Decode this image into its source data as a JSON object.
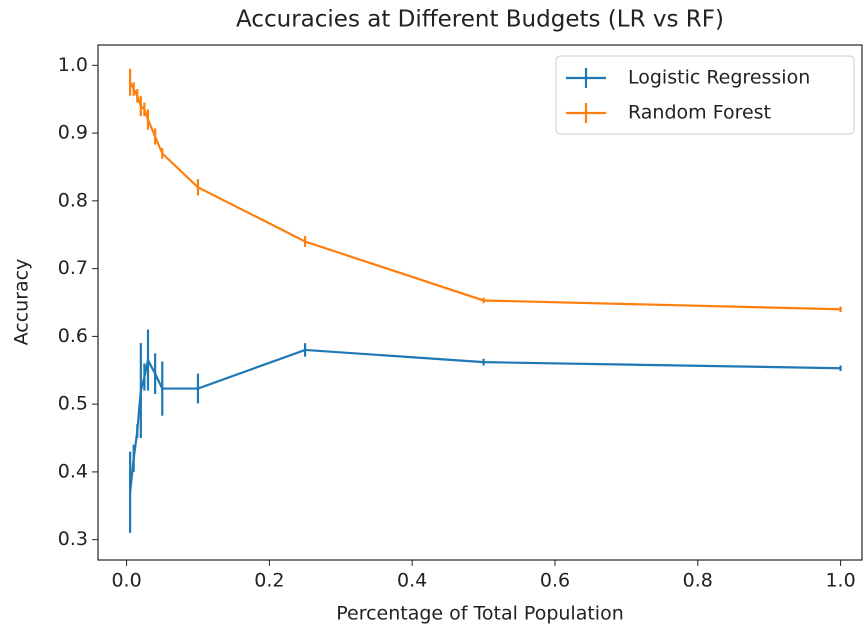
{
  "chart_data": {
    "type": "line",
    "title": "Accuracies at Different Budgets (LR vs RF)",
    "xlabel": "Percentage of Total Population",
    "ylabel": "Accuracy",
    "x": [
      0.005,
      0.01,
      0.015,
      0.02,
      0.025,
      0.03,
      0.04,
      0.05,
      0.1,
      0.25,
      0.5,
      1.0
    ],
    "series": [
      {
        "name": "Logistic Regression",
        "color": "#1f77b4",
        "values": [
          0.37,
          0.42,
          0.46,
          0.52,
          0.54,
          0.565,
          0.545,
          0.523,
          0.523,
          0.58,
          0.562,
          0.553
        ],
        "errors": [
          0.06,
          0.02,
          0.01,
          0.07,
          0.02,
          0.045,
          0.03,
          0.04,
          0.022,
          0.01,
          0.005,
          0.004
        ]
      },
      {
        "name": "Random Forest",
        "color": "#ff7f0e",
        "values": [
          0.975,
          0.965,
          0.955,
          0.94,
          0.935,
          0.92,
          0.895,
          0.87,
          0.82,
          0.74,
          0.653,
          0.64
        ],
        "errors": [
          0.02,
          0.01,
          0.01,
          0.015,
          0.01,
          0.015,
          0.012,
          0.008,
          0.012,
          0.008,
          0.004,
          0.004
        ]
      }
    ],
    "xlim": [
      -0.04,
      1.03
    ],
    "ylim": [
      0.27,
      1.03
    ],
    "xticks": [
      {
        "value": 0,
        "label": "0.0"
      },
      0.2,
      0.4,
      0.6,
      0.8,
      {
        "value": 1,
        "label": "1.0"
      }
    ],
    "yticks": [
      0.3,
      0.4,
      0.5,
      0.6,
      0.7,
      0.8,
      0.9,
      {
        "value": 1,
        "label": "1.0"
      }
    ],
    "legend": "upper right"
  }
}
